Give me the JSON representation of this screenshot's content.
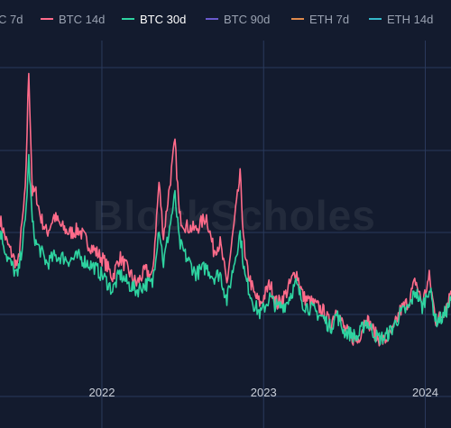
{
  "colors": {
    "background": "#131b2e",
    "grid": "#2a3a5c",
    "BTC 7d": "#ef6f6c",
    "BTC 14d": "#ff6b8a",
    "BTC 30d": "#2ed3a0",
    "BTC 90d": "#6a5acd",
    "ETH 7d": "#e08a4c",
    "ETH 14d": "#35b8c9"
  },
  "watermark": "BlockScholes",
  "legend": [
    {
      "label": "C 7d",
      "series": "BTC 7d",
      "active": false
    },
    {
      "label": "BTC 14d",
      "series": "BTC 14d",
      "active": false
    },
    {
      "label": "BTC 30d",
      "series": "BTC 30d",
      "active": true
    },
    {
      "label": "BTC 90d",
      "series": "BTC 90d",
      "active": false
    },
    {
      "label": "ETH 7d",
      "series": "ETH 7d",
      "active": false
    },
    {
      "label": "ETH 14d",
      "series": "ETH 14d",
      "active": false
    }
  ],
  "chart_data": {
    "type": "line",
    "title": "",
    "xlabel": "",
    "ylabel": "",
    "x_tick_labels": [
      "2022",
      "2023",
      "2024"
    ],
    "x_range": [
      "2021-05-16",
      "2024-02-28"
    ],
    "y_range": [
      0,
      1
    ],
    "grid": true,
    "legend_position": "top",
    "series": [
      {
        "name": "BTC 14d",
        "points": [
          [
            "2021-05-16",
            0.47
          ],
          [
            "2021-06-01",
            0.4
          ],
          [
            "2021-06-25",
            0.33
          ],
          [
            "2021-07-12",
            0.55
          ],
          [
            "2021-07-20",
            0.91
          ],
          [
            "2021-07-28",
            0.55
          ],
          [
            "2021-08-05",
            0.55
          ],
          [
            "2021-08-15",
            0.48
          ],
          [
            "2021-08-30",
            0.43
          ],
          [
            "2021-09-15",
            0.48
          ],
          [
            "2021-10-01",
            0.45
          ],
          [
            "2021-10-20",
            0.43
          ],
          [
            "2021-11-10",
            0.44
          ],
          [
            "2021-12-01",
            0.4
          ],
          [
            "2021-12-15",
            0.38
          ],
          [
            "2022-01-05",
            0.35
          ],
          [
            "2022-01-25",
            0.3
          ],
          [
            "2022-02-10",
            0.36
          ],
          [
            "2022-03-01",
            0.32
          ],
          [
            "2022-03-20",
            0.28
          ],
          [
            "2022-04-10",
            0.32
          ],
          [
            "2022-04-25",
            0.3
          ],
          [
            "2022-05-10",
            0.58
          ],
          [
            "2022-05-20",
            0.42
          ],
          [
            "2022-06-15",
            0.7
          ],
          [
            "2022-06-25",
            0.48
          ],
          [
            "2022-07-10",
            0.45
          ],
          [
            "2022-08-01",
            0.44
          ],
          [
            "2022-08-25",
            0.48
          ],
          [
            "2022-09-10",
            0.38
          ],
          [
            "2022-09-25",
            0.4
          ],
          [
            "2022-10-10",
            0.28
          ],
          [
            "2022-11-09",
            0.6
          ],
          [
            "2022-11-20",
            0.35
          ],
          [
            "2022-12-10",
            0.25
          ],
          [
            "2022-12-25",
            0.22
          ],
          [
            "2023-01-15",
            0.28
          ],
          [
            "2023-02-01",
            0.22
          ],
          [
            "2023-02-20",
            0.25
          ],
          [
            "2023-03-15",
            0.32
          ],
          [
            "2023-04-01",
            0.24
          ],
          [
            "2023-04-25",
            0.22
          ],
          [
            "2023-05-15",
            0.2
          ],
          [
            "2023-06-01",
            0.16
          ],
          [
            "2023-06-15",
            0.21
          ],
          [
            "2023-07-01",
            0.15
          ],
          [
            "2023-07-20",
            0.12
          ],
          [
            "2023-08-01",
            0.11
          ],
          [
            "2023-08-20",
            0.18
          ],
          [
            "2023-09-15",
            0.12
          ],
          [
            "2023-10-01",
            0.11
          ],
          [
            "2023-10-20",
            0.14
          ],
          [
            "2023-11-05",
            0.2
          ],
          [
            "2023-11-25",
            0.23
          ],
          [
            "2023-12-10",
            0.29
          ],
          [
            "2023-12-25",
            0.22
          ],
          [
            "2024-01-10",
            0.3
          ],
          [
            "2024-01-25",
            0.17
          ],
          [
            "2024-02-10",
            0.19
          ],
          [
            "2024-02-28",
            0.26
          ]
        ]
      },
      {
        "name": "BTC 30d",
        "points": [
          [
            "2021-05-16",
            0.44
          ],
          [
            "2021-06-01",
            0.36
          ],
          [
            "2021-06-25",
            0.3
          ],
          [
            "2021-07-12",
            0.46
          ],
          [
            "2021-07-20",
            0.65
          ],
          [
            "2021-07-28",
            0.46
          ],
          [
            "2021-08-05",
            0.4
          ],
          [
            "2021-08-15",
            0.38
          ],
          [
            "2021-08-30",
            0.34
          ],
          [
            "2021-09-15",
            0.36
          ],
          [
            "2021-10-01",
            0.36
          ],
          [
            "2021-10-20",
            0.35
          ],
          [
            "2021-11-10",
            0.36
          ],
          [
            "2021-12-01",
            0.34
          ],
          [
            "2021-12-15",
            0.33
          ],
          [
            "2022-01-05",
            0.3
          ],
          [
            "2022-01-25",
            0.26
          ],
          [
            "2022-02-10",
            0.31
          ],
          [
            "2022-03-01",
            0.28
          ],
          [
            "2022-03-20",
            0.26
          ],
          [
            "2022-04-10",
            0.28
          ],
          [
            "2022-04-25",
            0.28
          ],
          [
            "2022-05-10",
            0.45
          ],
          [
            "2022-05-20",
            0.34
          ],
          [
            "2022-06-15",
            0.54
          ],
          [
            "2022-06-25",
            0.4
          ],
          [
            "2022-07-10",
            0.36
          ],
          [
            "2022-08-01",
            0.31
          ],
          [
            "2022-08-25",
            0.33
          ],
          [
            "2022-09-10",
            0.3
          ],
          [
            "2022-09-25",
            0.31
          ],
          [
            "2022-10-10",
            0.23
          ],
          [
            "2022-11-09",
            0.43
          ],
          [
            "2022-11-20",
            0.3
          ],
          [
            "2022-12-10",
            0.22
          ],
          [
            "2022-12-25",
            0.19
          ],
          [
            "2023-01-15",
            0.24
          ],
          [
            "2023-02-01",
            0.21
          ],
          [
            "2023-02-20",
            0.22
          ],
          [
            "2023-03-15",
            0.28
          ],
          [
            "2023-04-01",
            0.22
          ],
          [
            "2023-04-25",
            0.2
          ],
          [
            "2023-05-15",
            0.18
          ],
          [
            "2023-06-01",
            0.15
          ],
          [
            "2023-06-15",
            0.19
          ],
          [
            "2023-07-01",
            0.14
          ],
          [
            "2023-07-20",
            0.13
          ],
          [
            "2023-08-01",
            0.12
          ],
          [
            "2023-08-20",
            0.17
          ],
          [
            "2023-09-15",
            0.12
          ],
          [
            "2023-10-01",
            0.12
          ],
          [
            "2023-10-20",
            0.15
          ],
          [
            "2023-11-05",
            0.19
          ],
          [
            "2023-11-25",
            0.21
          ],
          [
            "2023-12-10",
            0.26
          ],
          [
            "2023-12-25",
            0.21
          ],
          [
            "2024-01-10",
            0.27
          ],
          [
            "2024-01-25",
            0.17
          ],
          [
            "2024-02-10",
            0.18
          ],
          [
            "2024-02-28",
            0.23
          ]
        ]
      }
    ]
  }
}
